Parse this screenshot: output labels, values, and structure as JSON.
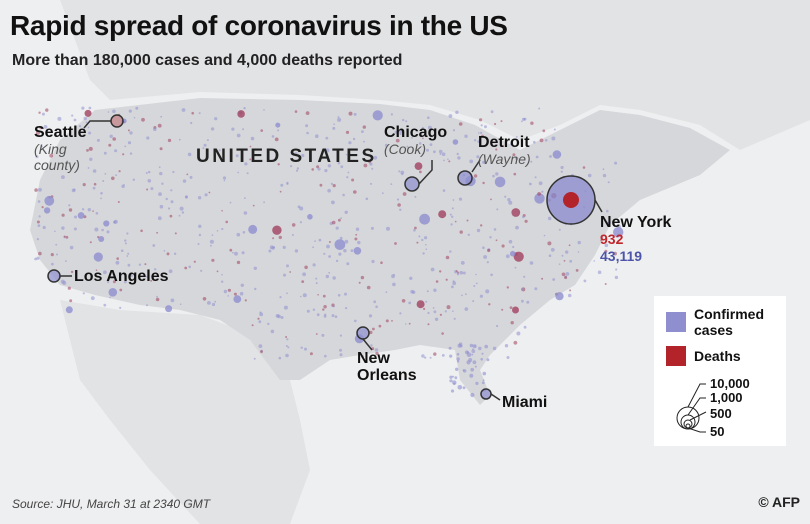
{
  "title": "Rapid spread of coronavirus in the US",
  "subtitle": "More than 180,000 cases and 4,000 deaths reported",
  "country_label": "UNITED STATES",
  "cities": [
    {
      "id": "seattle",
      "name": "Seattle",
      "county": "(King county)"
    },
    {
      "id": "chicago",
      "name": "Chicago",
      "county": "(Cook)"
    },
    {
      "id": "detroit",
      "name": "Detroit",
      "county": "(Wayne)"
    },
    {
      "id": "new-york",
      "name": "New York",
      "deaths": "932",
      "cases": "43,119"
    },
    {
      "id": "los-angeles",
      "name": "Los Angeles"
    },
    {
      "id": "new-orleans",
      "name": "New Orleans"
    },
    {
      "id": "miami",
      "name": "Miami"
    }
  ],
  "legend": {
    "confirmed_label": "Confirmed cases",
    "deaths_label": "Deaths",
    "scale_values": [
      "10,000",
      "1,000",
      "500",
      "50"
    ],
    "colors": {
      "confirmed": "#8f8fd0",
      "deaths": "#b3232a"
    }
  },
  "source": "Source: JHU, March 31 at 2340 GMT",
  "credit": "© AFP"
}
